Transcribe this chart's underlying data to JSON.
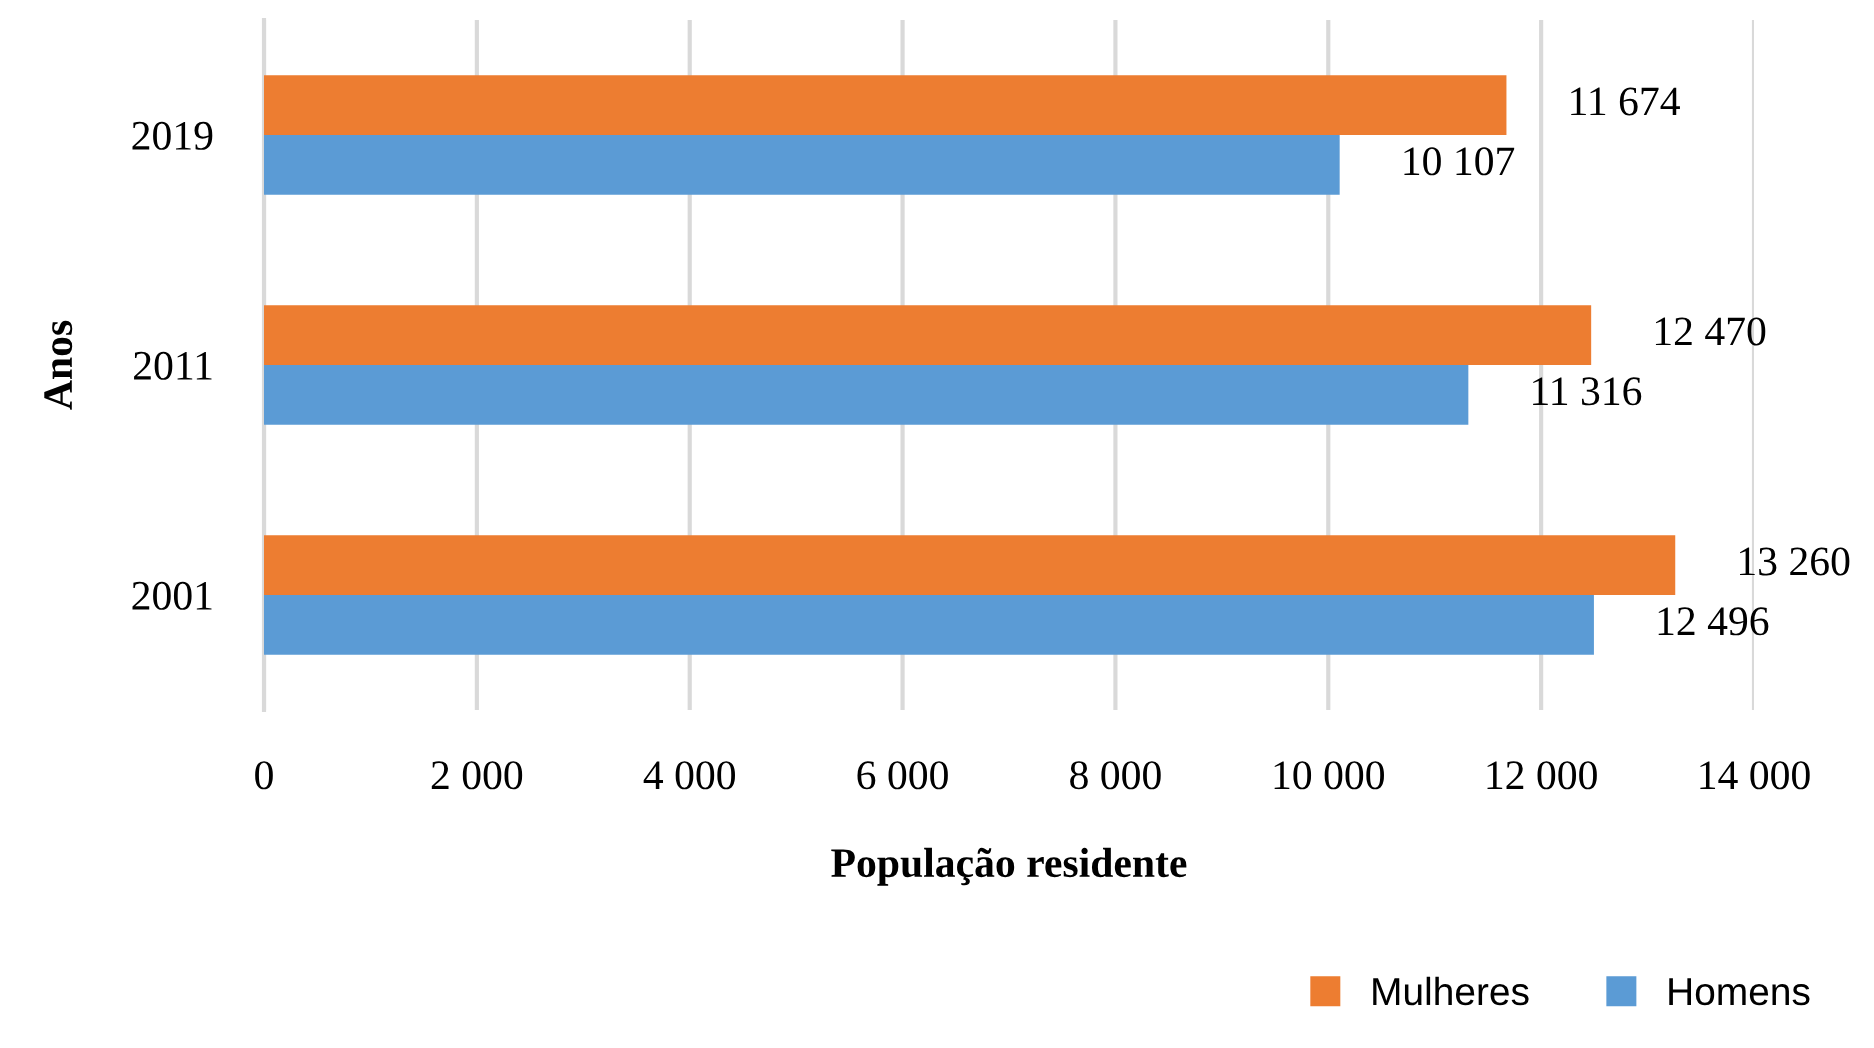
{
  "chart_data": {
    "type": "bar",
    "orientation": "horizontal",
    "xlabel": "População residente",
    "ylabel": "Anos",
    "categories": [
      "2019",
      "2011",
      "2001"
    ],
    "series": [
      {
        "name": "Mulheres",
        "color": "#ed7d31",
        "values": [
          11674,
          12470,
          13260
        ],
        "value_labels": [
          "11 674",
          "12 470",
          "13 260"
        ]
      },
      {
        "name": "Homens",
        "color": "#5b9bd5",
        "values": [
          10107,
          11316,
          12496
        ],
        "value_labels": [
          "10 107",
          "11 316",
          "12 496"
        ]
      }
    ],
    "xlim": [
      0,
      14000
    ],
    "xticks": [
      0,
      {
        "value": 2000,
        "label": "2 000"
      },
      {
        "value": 4000,
        "label": "4 000"
      },
      {
        "value": 6000,
        "label": "6 000"
      },
      {
        "value": 8000,
        "label": "8 000"
      },
      {
        "value": 10000,
        "label": "10 000"
      },
      {
        "value": 12000,
        "label": "12 000"
      },
      {
        "value": 14000,
        "label": "14 000"
      }
    ],
    "grid": "x",
    "legend": "bottom"
  }
}
